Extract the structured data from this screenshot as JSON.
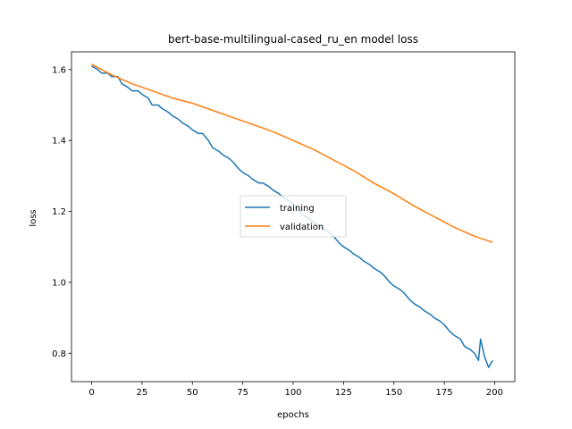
{
  "chart_data": {
    "type": "line",
    "title": "bert-base-multilingual-cased_ru_en model loss",
    "xlabel": "epochs",
    "ylabel": "loss",
    "xlim": [
      -10,
      210
    ],
    "ylim": [
      0.72,
      1.65
    ],
    "xticks": [
      0,
      25,
      50,
      75,
      100,
      125,
      150,
      175,
      200
    ],
    "yticks": [
      0.8,
      1.0,
      1.2,
      1.4,
      1.6
    ],
    "ytick_labels": [
      "0.8",
      "1.0",
      "1.2",
      "1.4",
      "1.6"
    ],
    "grid": false,
    "legend_position": "center",
    "series": [
      {
        "name": "training",
        "color": "#1f77b4",
        "x": [
          0,
          3,
          5,
          8,
          10,
          13,
          15,
          18,
          20,
          23,
          25,
          28,
          30,
          33,
          35,
          38,
          40,
          43,
          45,
          48,
          50,
          53,
          55,
          58,
          60,
          63,
          65,
          68,
          70,
          73,
          75,
          78,
          80,
          83,
          85,
          88,
          90,
          93,
          95,
          98,
          100,
          103,
          105,
          108,
          110,
          113,
          115,
          118,
          120,
          123,
          125,
          128,
          130,
          133,
          135,
          138,
          140,
          143,
          145,
          148,
          150,
          153,
          155,
          158,
          160,
          163,
          165,
          168,
          170,
          173,
          175,
          178,
          180,
          183,
          185,
          188,
          190,
          192,
          193,
          195,
          197,
          199
        ],
        "values": [
          1.61,
          1.6,
          1.59,
          1.59,
          1.58,
          1.58,
          1.56,
          1.55,
          1.54,
          1.54,
          1.53,
          1.52,
          1.5,
          1.5,
          1.49,
          1.48,
          1.47,
          1.46,
          1.45,
          1.44,
          1.43,
          1.42,
          1.42,
          1.4,
          1.38,
          1.37,
          1.36,
          1.35,
          1.34,
          1.32,
          1.31,
          1.3,
          1.29,
          1.28,
          1.28,
          1.27,
          1.26,
          1.25,
          1.24,
          1.23,
          1.22,
          1.2,
          1.19,
          1.18,
          1.17,
          1.16,
          1.15,
          1.14,
          1.13,
          1.11,
          1.1,
          1.09,
          1.08,
          1.07,
          1.06,
          1.05,
          1.04,
          1.03,
          1.02,
          1.0,
          0.99,
          0.98,
          0.97,
          0.95,
          0.94,
          0.93,
          0.92,
          0.91,
          0.9,
          0.89,
          0.88,
          0.86,
          0.85,
          0.84,
          0.82,
          0.81,
          0.8,
          0.78,
          0.84,
          0.79,
          0.76,
          0.78
        ]
      },
      {
        "name": "validation",
        "color": "#ff7f0e",
        "x": [
          0,
          10,
          20,
          30,
          40,
          50,
          60,
          70,
          80,
          90,
          100,
          110,
          120,
          130,
          140,
          150,
          160,
          170,
          180,
          190,
          199
        ],
        "values": [
          1.615,
          1.585,
          1.56,
          1.54,
          1.52,
          1.505,
          1.485,
          1.465,
          1.445,
          1.425,
          1.4,
          1.375,
          1.345,
          1.315,
          1.28,
          1.25,
          1.215,
          1.185,
          1.155,
          1.13,
          1.113
        ]
      }
    ]
  }
}
